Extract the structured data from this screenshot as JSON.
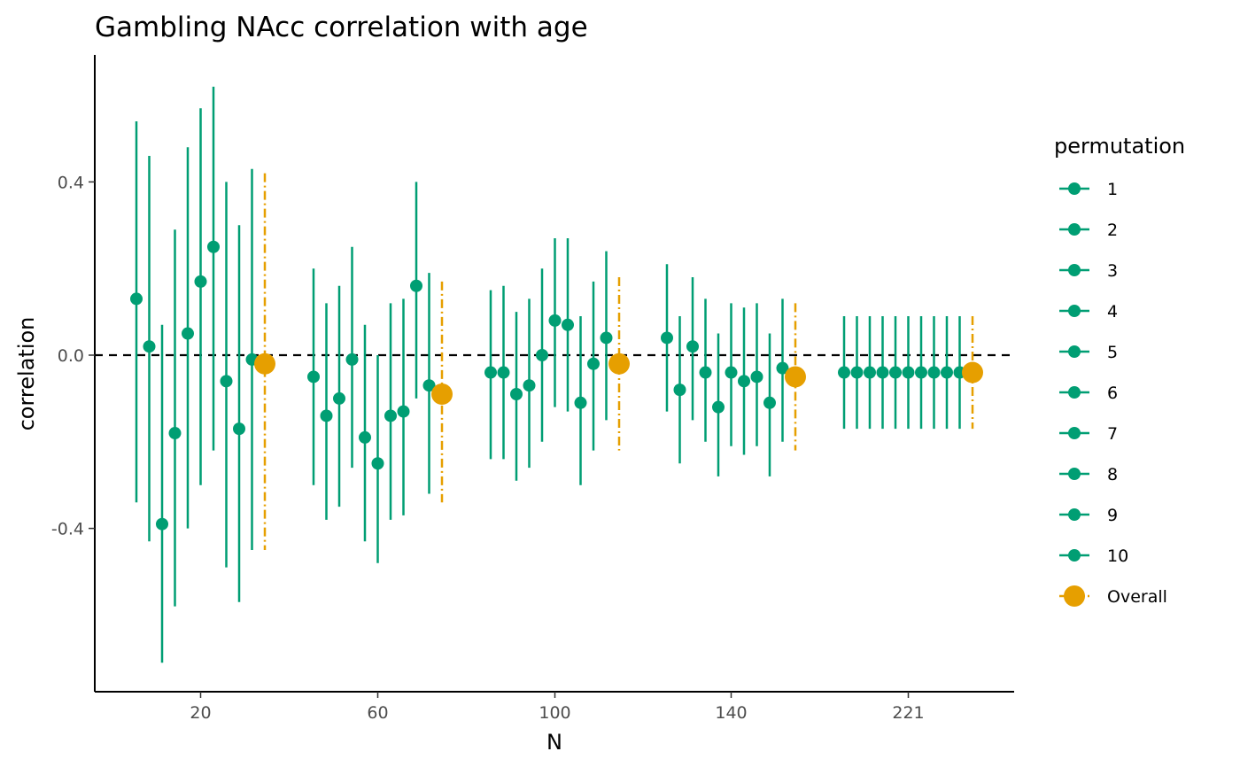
{
  "chart_data": {
    "type": "scatter",
    "title": "Gambling NAcc correlation with age",
    "xlabel": "N",
    "ylabel": "correlation",
    "x_tick_labels": [
      "20",
      "60",
      "100",
      "140",
      "221"
    ],
    "y_ticks": [
      -0.4,
      0.0,
      0.4
    ],
    "y_tick_labels": [
      "-0.4",
      "0.0",
      "0.4"
    ],
    "ylim": [
      -0.78,
      0.69
    ],
    "reference_line": 0.0,
    "legend": {
      "title": "permutation",
      "entries": [
        "1",
        "2",
        "3",
        "4",
        "5",
        "6",
        "7",
        "8",
        "9",
        "10",
        "Overall"
      ],
      "position": "right"
    },
    "colors": {
      "permutation": "#009E73",
      "overall": "#E69F00",
      "axis": "#000000"
    },
    "groups": [
      {
        "n_label": "20",
        "permutations": [
          {
            "estimate": 0.13,
            "lower": -0.34,
            "upper": 0.54
          },
          {
            "estimate": 0.02,
            "lower": -0.43,
            "upper": 0.46
          },
          {
            "estimate": -0.39,
            "lower": -0.71,
            "upper": 0.07
          },
          {
            "estimate": -0.18,
            "lower": -0.58,
            "upper": 0.29
          },
          {
            "estimate": 0.05,
            "lower": -0.4,
            "upper": 0.48
          },
          {
            "estimate": 0.17,
            "lower": -0.3,
            "upper": 0.57
          },
          {
            "estimate": 0.25,
            "lower": -0.22,
            "upper": 0.62
          },
          {
            "estimate": -0.06,
            "lower": -0.49,
            "upper": 0.4
          },
          {
            "estimate": -0.17,
            "lower": -0.57,
            "upper": 0.3
          },
          {
            "estimate": -0.01,
            "lower": -0.45,
            "upper": 0.43
          }
        ],
        "overall": {
          "estimate": -0.02,
          "lower": -0.45,
          "upper": 0.42
        }
      },
      {
        "n_label": "60",
        "permutations": [
          {
            "estimate": -0.05,
            "lower": -0.3,
            "upper": 0.2
          },
          {
            "estimate": -0.14,
            "lower": -0.38,
            "upper": 0.12
          },
          {
            "estimate": -0.1,
            "lower": -0.35,
            "upper": 0.16
          },
          {
            "estimate": -0.01,
            "lower": -0.26,
            "upper": 0.25
          },
          {
            "estimate": -0.19,
            "lower": -0.43,
            "upper": 0.07
          },
          {
            "estimate": -0.25,
            "lower": -0.48,
            "upper": 0.0
          },
          {
            "estimate": -0.14,
            "lower": -0.38,
            "upper": 0.12
          },
          {
            "estimate": -0.13,
            "lower": -0.37,
            "upper": 0.13
          },
          {
            "estimate": 0.16,
            "lower": -0.1,
            "upper": 0.4
          },
          {
            "estimate": -0.07,
            "lower": -0.32,
            "upper": 0.19
          }
        ],
        "overall": {
          "estimate": -0.09,
          "lower": -0.34,
          "upper": 0.17
        }
      },
      {
        "n_label": "100",
        "permutations": [
          {
            "estimate": -0.04,
            "lower": -0.24,
            "upper": 0.15
          },
          {
            "estimate": -0.04,
            "lower": -0.24,
            "upper": 0.16
          },
          {
            "estimate": -0.09,
            "lower": -0.29,
            "upper": 0.1
          },
          {
            "estimate": -0.07,
            "lower": -0.26,
            "upper": 0.13
          },
          {
            "estimate": 0.0,
            "lower": -0.2,
            "upper": 0.2
          },
          {
            "estimate": 0.08,
            "lower": -0.12,
            "upper": 0.27
          },
          {
            "estimate": 0.07,
            "lower": -0.13,
            "upper": 0.27
          },
          {
            "estimate": -0.11,
            "lower": -0.3,
            "upper": 0.09
          },
          {
            "estimate": -0.02,
            "lower": -0.22,
            "upper": 0.17
          },
          {
            "estimate": 0.04,
            "lower": -0.15,
            "upper": 0.24
          }
        ],
        "overall": {
          "estimate": -0.02,
          "lower": -0.22,
          "upper": 0.18
        }
      },
      {
        "n_label": "140",
        "permutations": [
          {
            "estimate": 0.04,
            "lower": -0.13,
            "upper": 0.21
          },
          {
            "estimate": -0.08,
            "lower": -0.25,
            "upper": 0.09
          },
          {
            "estimate": 0.02,
            "lower": -0.15,
            "upper": 0.18
          },
          {
            "estimate": -0.04,
            "lower": -0.2,
            "upper": 0.13
          },
          {
            "estimate": -0.12,
            "lower": -0.28,
            "upper": 0.05
          },
          {
            "estimate": -0.04,
            "lower": -0.21,
            "upper": 0.12
          },
          {
            "estimate": -0.06,
            "lower": -0.23,
            "upper": 0.11
          },
          {
            "estimate": -0.05,
            "lower": -0.21,
            "upper": 0.12
          },
          {
            "estimate": -0.11,
            "lower": -0.28,
            "upper": 0.05
          },
          {
            "estimate": -0.03,
            "lower": -0.2,
            "upper": 0.13
          }
        ],
        "overall": {
          "estimate": -0.05,
          "lower": -0.22,
          "upper": 0.12
        }
      },
      {
        "n_label": "221",
        "permutations": [
          {
            "estimate": -0.04,
            "lower": -0.17,
            "upper": 0.09
          },
          {
            "estimate": -0.04,
            "lower": -0.17,
            "upper": 0.09
          },
          {
            "estimate": -0.04,
            "lower": -0.17,
            "upper": 0.09
          },
          {
            "estimate": -0.04,
            "lower": -0.17,
            "upper": 0.09
          },
          {
            "estimate": -0.04,
            "lower": -0.17,
            "upper": 0.09
          },
          {
            "estimate": -0.04,
            "lower": -0.17,
            "upper": 0.09
          },
          {
            "estimate": -0.04,
            "lower": -0.17,
            "upper": 0.09
          },
          {
            "estimate": -0.04,
            "lower": -0.17,
            "upper": 0.09
          },
          {
            "estimate": -0.04,
            "lower": -0.17,
            "upper": 0.09
          },
          {
            "estimate": -0.04,
            "lower": -0.17,
            "upper": 0.09
          }
        ],
        "overall": {
          "estimate": -0.04,
          "lower": -0.17,
          "upper": 0.09
        }
      }
    ]
  }
}
